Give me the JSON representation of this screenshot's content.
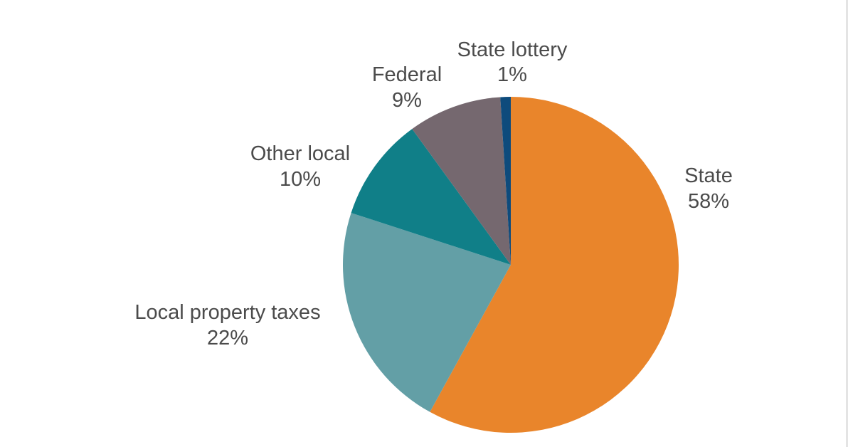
{
  "chart_data": {
    "type": "pie",
    "title": "",
    "slices": [
      {
        "label": "State",
        "value": 58,
        "value_label": "58%",
        "color": "#e9852b"
      },
      {
        "label": "Local property taxes",
        "value": 22,
        "value_label": "22%",
        "color": "#639fa6"
      },
      {
        "label": "Other local",
        "value": 10,
        "value_label": "10%",
        "color": "#107f88"
      },
      {
        "label": "Federal",
        "value": 9,
        "value_label": "9%",
        "color": "#75686f"
      },
      {
        "label": "State lottery",
        "value": 1,
        "value_label": "1%",
        "color": "#0e4b7c"
      }
    ],
    "start": "12 o'clock",
    "direction": "clockwise",
    "legend": "none",
    "labels": "outside"
  }
}
